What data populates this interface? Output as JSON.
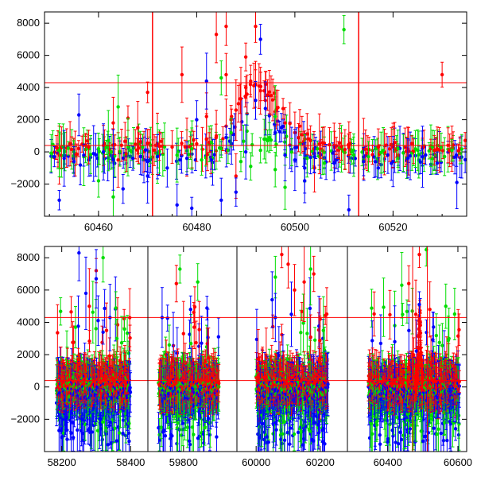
{
  "colors": {
    "red": "#ff0000",
    "green": "#00dd00",
    "blue": "#0000ff",
    "frame": "#000000"
  },
  "chart_data": [
    {
      "type": "scatter",
      "panel": "top",
      "error_bars": true,
      "xlim": [
        60449,
        60535
      ],
      "ylim": [
        -4000,
        8700
      ],
      "xticks": [
        60460,
        60480,
        60500,
        60520
      ],
      "xtick_labels": [
        "60460",
        "60480",
        "60500",
        "60520"
      ],
      "yticks": [
        -2000,
        0,
        2000,
        4000,
        6000,
        8000
      ],
      "ytick_labels": [
        "−2000",
        "0",
        "2000",
        "4000",
        "6000",
        "8000"
      ],
      "hlines": [
        4300,
        400
      ],
      "vlines": [
        60471,
        60513
      ],
      "gaps": [
        [
          60473.5,
          60475.5
        ],
        [
          60485.5,
          60486.0
        ],
        [
          60512.5,
          60513.2
        ]
      ],
      "series": [
        {
          "color": "red",
          "points": [
            [
              60452,
              -200
            ],
            [
              60455,
              100
            ],
            [
              60458,
              300
            ],
            [
              60461,
              400
            ],
            [
              60463,
              1800
            ],
            [
              60466,
              2100
            ],
            [
              60468,
              1500
            ],
            [
              60470,
              3700
            ],
            [
              60472,
              500
            ],
            [
              60475,
              300
            ],
            [
              60478,
              300
            ],
            [
              60480,
              500
            ],
            [
              60482,
              800
            ],
            [
              60484,
              1000
            ],
            [
              60486,
              1600
            ],
            [
              60487,
              2000
            ],
            [
              60488,
              2600
            ],
            [
              60489,
              3300
            ],
            [
              60490,
              4000
            ],
            [
              60491,
              4400
            ],
            [
              60492,
              4200
            ],
            [
              60493,
              3800
            ],
            [
              60494,
              3200
            ],
            [
              60496,
              2500
            ],
            [
              60498,
              1800
            ],
            [
              60500,
              1200
            ],
            [
              60502,
              800
            ],
            [
              60505,
              500
            ],
            [
              60508,
              400
            ],
            [
              60511,
              300
            ],
            [
              60514,
              200
            ],
            [
              60517,
              300
            ],
            [
              60520,
              300
            ],
            [
              60523,
              200
            ],
            [
              60526,
              300
            ],
            [
              60529,
              200
            ],
            [
              60532,
              200
            ],
            [
              60486,
              7800
            ],
            [
              60484,
              7300
            ],
            [
              60482,
              2200
            ],
            [
              60488,
              -1500
            ],
            [
              60501,
              1600
            ],
            [
              60530,
              4800
            ],
            [
              60492,
              7800
            ],
            [
              60490,
              5900
            ],
            [
              60486,
              4800
            ],
            [
              60477,
              4800
            ],
            [
              60464,
              -500
            ],
            [
              60504,
              -1000
            ]
          ]
        },
        {
          "color": "green",
          "points": [
            [
              60452,
              100
            ],
            [
              60455,
              0
            ],
            [
              60457,
              -300
            ],
            [
              60460,
              200
            ],
            [
              60462,
              700
            ],
            [
              60464,
              2800
            ],
            [
              60466,
              300
            ],
            [
              60469,
              300
            ],
            [
              60472,
              -100
            ],
            [
              60476,
              -200
            ],
            [
              60479,
              200
            ],
            [
              60481,
              -500
            ],
            [
              60483,
              600
            ],
            [
              60485,
              4600
            ],
            [
              60487,
              1200
            ],
            [
              60489,
              -600
            ],
            [
              60491,
              -900
            ],
            [
              60493,
              100
            ],
            [
              60496,
              -1100
            ],
            [
              60498,
              -2200
            ],
            [
              60502,
              -400
            ],
            [
              60506,
              -700
            ],
            [
              60510,
              7600
            ],
            [
              60512,
              -200
            ],
            [
              60515,
              -300
            ],
            [
              60518,
              100
            ],
            [
              60521,
              200
            ],
            [
              60525,
              100
            ],
            [
              60528,
              300
            ],
            [
              60532,
              100
            ],
            [
              60460,
              -1800
            ],
            [
              60463,
              -2800
            ],
            [
              60496,
              2200
            ]
          ]
        },
        {
          "color": "blue",
          "points": [
            [
              60451,
              -300
            ],
            [
              60453,
              -400
            ],
            [
              60455,
              -600
            ],
            [
              60457,
              -200
            ],
            [
              60459,
              -100
            ],
            [
              60461,
              0
            ],
            [
              60463,
              -500
            ],
            [
              60465,
              -2300
            ],
            [
              60467,
              -400
            ],
            [
              60470,
              -600
            ],
            [
              60472,
              -300
            ],
            [
              60474,
              -1000
            ],
            [
              60476,
              -3300
            ],
            [
              60478,
              -400
            ],
            [
              60480,
              2000
            ],
            [
              60482,
              4400
            ],
            [
              60483,
              -500
            ],
            [
              60485,
              -3000
            ],
            [
              60486,
              900
            ],
            [
              60488,
              -2500
            ],
            [
              60490,
              0
            ],
            [
              60492,
              3200
            ],
            [
              60493,
              7000
            ],
            [
              60494,
              2700
            ],
            [
              60496,
              1200
            ],
            [
              60498,
              -200
            ],
            [
              60500,
              -500
            ],
            [
              60502,
              -1000
            ],
            [
              60504,
              -300
            ],
            [
              60508,
              -700
            ],
            [
              60511,
              -3600
            ],
            [
              60514,
              -600
            ],
            [
              60517,
              -1000
            ],
            [
              60520,
              -600
            ],
            [
              60523,
              -400
            ],
            [
              60526,
              -300
            ],
            [
              60529,
              -700
            ],
            [
              60533,
              -1900
            ],
            [
              60452,
              -3000
            ],
            [
              60456,
              2300
            ],
            [
              60479,
              -3500
            ],
            [
              60470,
              -1500
            ],
            [
              60502,
              -1800
            ],
            [
              60536,
              -2000
            ]
          ]
        }
      ]
    },
    {
      "type": "scatter",
      "panel": "bottom",
      "error_bars": true,
      "ylim": [
        -4000,
        8700
      ],
      "segments": [
        {
          "xlim": [
            58150,
            58450
          ],
          "xticks": [
            58200,
            58400
          ],
          "xtick_labels": [
            "58200",
            "58400"
          ]
        },
        {
          "xlim": [
            59700,
            59950
          ],
          "xticks": [
            59800
          ],
          "xtick_labels": [
            "59800"
          ]
        },
        {
          "xlim": [
            59940,
            60285
          ],
          "xticks": [
            60000,
            60200
          ],
          "xtick_labels": [
            "60000",
            "60200"
          ]
        },
        {
          "xlim": [
            60285,
            60625
          ],
          "xticks": [
            60400,
            60600
          ],
          "xtick_labels": [
            "60400",
            "60600"
          ]
        }
      ],
      "yticks": [
        -2000,
        0,
        2000,
        4000,
        6000,
        8000
      ],
      "ytick_labels": [
        "−2000",
        "0",
        "2000",
        "4000",
        "6000",
        "8000"
      ],
      "hlines": [
        4300,
        400
      ],
      "vlines": [
        60471,
        60513
      ],
      "data_ranges": [
        [
          58185,
          58400
        ],
        [
          59730,
          59900
        ],
        [
          60000,
          60225
        ],
        [
          60345,
          60605
        ]
      ],
      "outliers": [
        {
          "color": "red",
          "points": [
            [
              58280,
              5000
            ],
            [
              58300,
              7200
            ],
            [
              58330,
              3500
            ],
            [
              59780,
              6400
            ],
            [
              59800,
              3300
            ],
            [
              59830,
              3700
            ],
            [
              60080,
              8200
            ],
            [
              60100,
              7600
            ],
            [
              60120,
              6000
            ],
            [
              60150,
              6500
            ],
            [
              60180,
              7000
            ],
            [
              60200,
              4200
            ],
            [
              60460,
              6400
            ],
            [
              60480,
              4500
            ],
            [
              60520,
              4800
            ],
            [
              60490,
              8200
            ]
          ]
        },
        {
          "color": "green",
          "points": [
            [
              58240,
              3700
            ],
            [
              58320,
              8000
            ],
            [
              58360,
              3000
            ],
            [
              59760,
              2600
            ],
            [
              59790,
              7300
            ],
            [
              59840,
              6500
            ],
            [
              60060,
              6800
            ],
            [
              60170,
              7300
            ],
            [
              60210,
              3500
            ],
            [
              60420,
              3800
            ],
            [
              60440,
              6300
            ],
            [
              60470,
              4700
            ],
            [
              60510,
              8500
            ]
          ]
        },
        {
          "color": "blue",
          "points": [
            [
              58250,
              8300
            ],
            [
              58270,
              5800
            ],
            [
              58300,
              6700
            ],
            [
              58340,
              4300
            ],
            [
              59740,
              4300
            ],
            [
              59820,
              4800
            ],
            [
              60050,
              5400
            ],
            [
              60060,
              4300
            ],
            [
              60110,
              4500
            ],
            [
              60380,
              2700
            ],
            [
              60420,
              2800
            ],
            [
              60490,
              5100
            ]
          ]
        }
      ]
    }
  ]
}
